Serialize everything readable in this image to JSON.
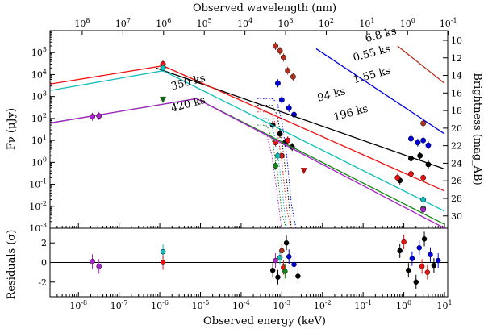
{
  "chart_data": {
    "type": "line",
    "title": "",
    "panels": [
      {
        "name": "main",
        "xlabel": "Observed energy (keV)",
        "ylabel": "Fν (μJy)",
        "xscale": "log",
        "yscale": "log",
        "xlim": [
          2e-09,
          12
        ],
        "ylim": [
          0.001,
          1000000
        ],
        "top_xlabel": "Observed wavelength (nm)",
        "top_ticks": [
          "10^8",
          "10^7",
          "10^6",
          "10^5",
          "10^4",
          "10^3",
          "10^2",
          "10^1",
          "10^0",
          "10^-1"
        ],
        "right_ylabel": "Brightness (mag_AB)",
        "right_ticks": [
          10,
          12,
          14,
          16,
          18,
          20,
          22,
          24,
          26,
          28,
          30
        ],
        "annotations": [
          "6.8 ks",
          "0.55 ks",
          "1.55 ks",
          "94 ks",
          "196 ks",
          "350 ks",
          "420 ks"
        ],
        "series": [
          {
            "name": "6.8 ks",
            "color": "#b03020",
            "model": [
              [
                0.7,
                200000
              ],
              [
                10,
                4000
              ]
            ],
            "points": [
              [
                0.0007,
                200000
              ],
              [
                0.0009,
                120000
              ],
              [
                0.0011,
                60000
              ],
              [
                0.0014,
                15000
              ],
              [
                0.0019,
                8000
              ],
              [
                3,
                60
              ]
            ]
          },
          {
            "name": "0.55 ks",
            "color": "#0000dd",
            "model": [
              [
                0.007,
                150000
              ],
              [
                10,
                20
              ]
            ],
            "points": [
              [
                0.0008,
                4000
              ],
              [
                0.001,
                700
              ],
              [
                0.0015,
                300
              ],
              [
                0.002,
                150
              ],
              [
                1.5,
                12
              ],
              [
                2.2,
                8
              ],
              [
                3,
                10
              ],
              [
                4,
                6
              ]
            ]
          },
          {
            "name": "1.55 ks",
            "color": "#000000",
            "model": [
              [
                8e-07,
                20000
              ],
              [
                10,
                0.5
              ]
            ],
            "points": [
              [
                0.0006,
                50
              ],
              [
                0.0009,
                20
              ],
              [
                0.0012,
                8
              ],
              [
                0.0018,
                5
              ],
              [
                0.8,
                0.15
              ],
              [
                1.5,
                1.5
              ],
              [
                2.5,
                2
              ],
              [
                4,
                0.8
              ]
            ]
          },
          {
            "name": "94 ks",
            "color": "#ee1111",
            "model": [
              [
                1e-09,
                3000
              ],
              [
                1.2e-06,
                25000
              ],
              [
                10,
                0.05
              ]
            ],
            "points": [
              [
                1.2e-06,
                30000
              ],
              [
                0.0007,
                8
              ],
              [
                0.001,
                2
              ],
              [
                0.0014,
                10
              ],
              [
                0.7,
                0.2
              ],
              [
                1.5,
                0.3
              ],
              [
                3,
                0.2
              ]
            ]
          },
          {
            "name": "196 ks",
            "color": "#11bbbb",
            "model": [
              [
                1e-09,
                1500
              ],
              [
                1.2e-06,
                15000
              ],
              [
                10,
                0.006
              ]
            ],
            "points": [
              [
                1.2e-06,
                20000
              ],
              [
                0.0008,
                2
              ],
              [
                3,
                0.02
              ]
            ]
          },
          {
            "name": "350 ks",
            "color": "#118811",
            "model": [
              [
                1e-09,
                50
              ],
              [
                8e-06,
                800
              ],
              [
                10,
                0.0015
              ]
            ],
            "points": [
              [
                0.0007,
                0.7
              ],
              [
                3,
                0.008
              ]
            ]
          },
          {
            "name": "420 ks",
            "color": "#aa22cc",
            "model": [
              [
                1e-09,
                50
              ],
              [
                8e-06,
                800
              ],
              [
                10,
                0.001
              ]
            ],
            "points": [
              [
                2.2e-08,
                120
              ],
              [
                3.2e-08,
                130
              ],
              [
                3,
                0.007
              ]
            ]
          }
        ],
        "upper_limits": [
          {
            "x": 1.2e-06,
            "y": 700,
            "color": "#116611"
          },
          {
            "x": 0.0035,
            "y": 0.4,
            "color": "#aa1111"
          }
        ]
      },
      {
        "name": "residuals",
        "ylabel": "Residuals (σ)",
        "xlabel": "Observed energy (keV)",
        "ylim": [
          -3.5,
          3.5
        ],
        "yticks": [
          -2,
          0,
          2
        ],
        "xticks": [
          "10^-8",
          "10^-7",
          "10^-6",
          "10^-5",
          "10^-4",
          "10^-3",
          "10^-2",
          "10^-1",
          "10^0",
          "10^1"
        ],
        "points": [
          {
            "x": 2.2e-08,
            "y": 0.1,
            "color": "#aa22cc"
          },
          {
            "x": 3.2e-08,
            "y": -0.4,
            "color": "#aa22cc"
          },
          {
            "x": 1.2e-06,
            "y": 1.1,
            "color": "#11bbbb"
          },
          {
            "x": 1.2e-06,
            "y": 0.0,
            "color": "#ee1111"
          },
          {
            "x": 0.0006,
            "y": -0.8,
            "color": "#000000"
          },
          {
            "x": 0.0007,
            "y": 0.2,
            "color": "#aa22cc"
          },
          {
            "x": 0.0008,
            "y": -1.5,
            "color": "#000000"
          },
          {
            "x": 0.0009,
            "y": 0.5,
            "color": "#11bbbb"
          },
          {
            "x": 0.001,
            "y": 1.2,
            "color": "#b03020"
          },
          {
            "x": 0.0011,
            "y": -0.5,
            "color": "#ee1111"
          },
          {
            "x": 0.0013,
            "y": 2.0,
            "color": "#000000"
          },
          {
            "x": 0.0015,
            "y": 0.6,
            "color": "#0000dd"
          },
          {
            "x": 0.002,
            "y": -0.2,
            "color": "#0000dd"
          },
          {
            "x": 0.0025,
            "y": -1.4,
            "color": "#000000"
          },
          {
            "x": 0.0012,
            "y": -0.9,
            "color": "#118811"
          },
          {
            "x": 0.8,
            "y": 1.2,
            "color": "#000000"
          },
          {
            "x": 1.0,
            "y": 2.1,
            "color": "#ee1111"
          },
          {
            "x": 1.3,
            "y": -0.8,
            "color": "#000000"
          },
          {
            "x": 1.6,
            "y": 0.4,
            "color": "#0000dd"
          },
          {
            "x": 2.0,
            "y": -2.0,
            "color": "#000000"
          },
          {
            "x": 2.4,
            "y": 1.5,
            "color": "#0000dd"
          },
          {
            "x": 2.8,
            "y": -0.4,
            "color": "#ee1111"
          },
          {
            "x": 3.2,
            "y": 2.4,
            "color": "#000000"
          },
          {
            "x": 3.8,
            "y": -1.0,
            "color": "#ee1111"
          },
          {
            "x": 4.5,
            "y": 0.8,
            "color": "#0000dd"
          },
          {
            "x": 5.5,
            "y": -0.3,
            "color": "#000000"
          },
          {
            "x": 7,
            "y": 0.2,
            "color": "#0000dd"
          }
        ]
      }
    ]
  },
  "labels": {
    "top_axis": "Observed wavelength (nm)",
    "left_axis_main": "Fν (μJy)",
    "right_axis": "Brightness (mag_AB)",
    "left_axis_resid": "Residuals (σ)",
    "bottom_axis": "Observed energy (keV)"
  }
}
